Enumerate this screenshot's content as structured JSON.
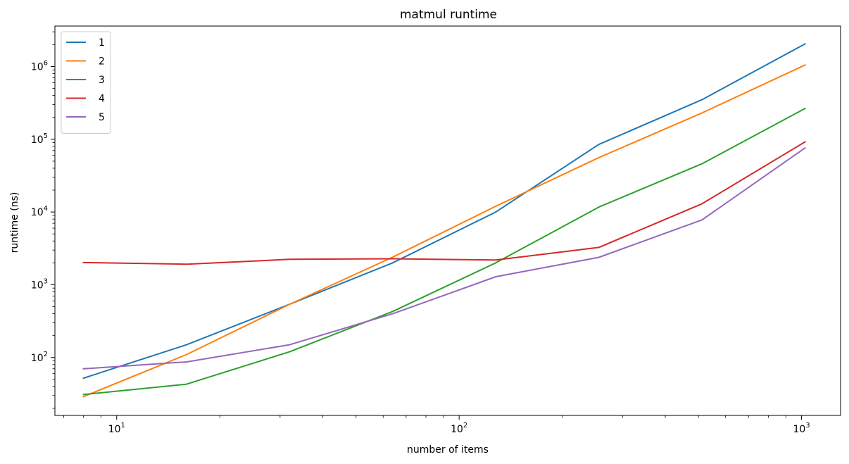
{
  "chart_data": {
    "type": "line",
    "title": "matmul runtime",
    "xlabel": "number of items",
    "ylabel": "runtime (ns)",
    "xscale": "log",
    "yscale": "log",
    "xlim": [
      6.6,
      1300
    ],
    "ylim": [
      16,
      3600000
    ],
    "grid": false,
    "legend_position": "top-left",
    "x": [
      8,
      16,
      32,
      64,
      128,
      256,
      512,
      1024
    ],
    "series": [
      {
        "name": "1",
        "color": "#1f77b4",
        "values": [
          52,
          150,
          540,
          2000,
          10000,
          85000,
          350000,
          2050000
        ]
      },
      {
        "name": "2",
        "color": "#ff7f0e",
        "values": [
          29,
          110,
          540,
          2400,
          12000,
          56000,
          230000,
          1050000
        ]
      },
      {
        "name": "3",
        "color": "#2ca02c",
        "values": [
          31,
          43,
          120,
          430,
          2000,
          11700,
          46000,
          265000
        ]
      },
      {
        "name": "4",
        "color": "#d62728",
        "values": [
          2020,
          1920,
          2240,
          2280,
          2190,
          3260,
          13000,
          92000
        ]
      },
      {
        "name": "5",
        "color": "#9467bd",
        "values": [
          70,
          87,
          150,
          400,
          1290,
          2380,
          7800,
          76000
        ]
      }
    ],
    "x_ticks": [
      {
        "value": 10,
        "base": "10",
        "exp": "1"
      },
      {
        "value": 100,
        "base": "10",
        "exp": "2"
      },
      {
        "value": 1000,
        "base": "10",
        "exp": "3"
      }
    ],
    "y_ticks": [
      {
        "value": 100,
        "base": "10",
        "exp": "2"
      },
      {
        "value": 1000,
        "base": "10",
        "exp": "3"
      },
      {
        "value": 10000,
        "base": "10",
        "exp": "4"
      },
      {
        "value": 100000,
        "base": "10",
        "exp": "5"
      },
      {
        "value": 1000000,
        "base": "10",
        "exp": "6"
      }
    ]
  }
}
